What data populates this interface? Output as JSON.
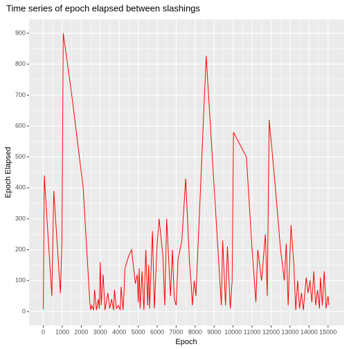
{
  "chart_data": {
    "type": "line",
    "title": "Time series of epoch elapsed between slashings",
    "x_label": "Epoch",
    "y_label": "Epoch Elapsed",
    "x": [
      0,
      50,
      450,
      550,
      900,
      980,
      1050,
      1500,
      2100,
      2450,
      2500,
      2550,
      2650,
      2700,
      2800,
      2900,
      2950,
      3000,
      3050,
      3150,
      3250,
      3400,
      3500,
      3600,
      3700,
      3750,
      3850,
      3950,
      4050,
      4100,
      4200,
      4250,
      4300,
      4500,
      4650,
      4850,
      4950,
      5000,
      5050,
      5100,
      5200,
      5300,
      5400,
      5500,
      5550,
      5600,
      5750,
      5850,
      6000,
      6100,
      6300,
      6400,
      6500,
      6700,
      6800,
      6900,
      7000,
      7100,
      7300,
      7500,
      7700,
      7800,
      7850,
      7950,
      8040,
      8580,
      9380,
      9450,
      9600,
      9700,
      9850,
      9950,
      10020,
      10700,
      11000,
      11200,
      11300,
      11500,
      11700,
      11800,
      11900,
      12200,
      12500,
      12700,
      12800,
      12900,
      13050,
      13200,
      13300,
      13400,
      13500,
      13600,
      13700,
      13850,
      13950,
      14050,
      14150,
      14250,
      14350,
      14450,
      14550,
      14600,
      14700,
      14800,
      14900,
      15000,
      15050
    ],
    "series": [
      {
        "name": "Epoch Elapsed",
        "color": "#ff0000",
        "values": [
          8,
          440,
          50,
          390,
          60,
          220,
          900,
          700,
          400,
          30,
          5,
          20,
          5,
          70,
          5,
          40,
          10,
          160,
          20,
          120,
          5,
          60,
          10,
          40,
          5,
          70,
          10,
          20,
          5,
          80,
          5,
          60,
          140,
          180,
          200,
          90,
          120,
          30,
          140,
          10,
          130,
          5,
          200,
          20,
          150,
          10,
          260,
          10,
          220,
          300,
          180,
          20,
          300,
          50,
          200,
          40,
          20,
          170,
          230,
          430,
          160,
          80,
          20,
          100,
          50,
          827,
          20,
          230,
          20,
          210,
          10,
          100,
          580,
          500,
          200,
          30,
          200,
          100,
          250,
          50,
          620,
          420,
          200,
          100,
          220,
          20,
          280,
          150,
          5,
          100,
          10,
          60,
          5,
          110,
          60,
          100,
          30,
          130,
          20,
          70,
          10,
          110,
          20,
          130,
          10,
          50,
          20
        ]
      }
    ],
    "xlim": [
      -750,
      15850
    ],
    "ylim": [
      -45,
      945
    ],
    "xticks": [
      0,
      1000,
      2000,
      3000,
      4000,
      5000,
      6000,
      7000,
      8000,
      9000,
      10000,
      11000,
      12000,
      13000,
      14000,
      15000
    ],
    "yticks": [
      0,
      100,
      200,
      300,
      400,
      500,
      600,
      700,
      800,
      900
    ],
    "grid": true
  }
}
